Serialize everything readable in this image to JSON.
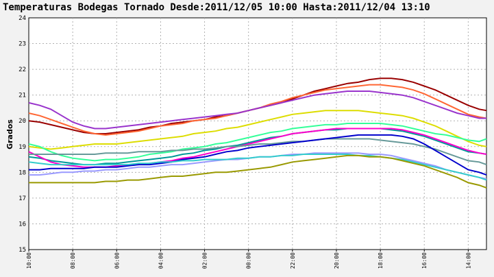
{
  "chart_data": {
    "type": "line",
    "title": "Temperaturas Bodegas Tornado Desde:2011/12/05 10:00 Hasta:2011/12/04 13:10",
    "ylabel": "Grados",
    "xlabel": "",
    "ylim": [
      15,
      24
    ],
    "yticks": [
      15,
      16,
      17,
      18,
      19,
      20,
      21,
      22,
      23,
      24
    ],
    "grid": true,
    "x_ticks": [
      "10:00",
      "08:00",
      "06:00",
      "04:00",
      "02:00",
      "00:00",
      "22:00",
      "20:00",
      "18:00",
      "16:00",
      "14:00"
    ],
    "x_positions": [
      0,
      2,
      4,
      6,
      8,
      10,
      12,
      14,
      16,
      18,
      20
    ],
    "xlim": [
      0,
      20.83
    ],
    "series": [
      {
        "color": "#990000",
        "x": [
          0,
          0.5,
          1,
          1.5,
          2,
          2.5,
          3,
          3.5,
          4,
          4.5,
          5,
          5.5,
          6,
          6.5,
          7,
          7.5,
          8,
          8.5,
          9,
          9.5,
          10,
          10.5,
          11,
          11.5,
          12,
          12.5,
          13,
          13.5,
          14,
          14.5,
          15,
          15.5,
          16,
          16.5,
          17,
          17.5,
          18,
          18.5,
          19,
          19.5,
          20,
          20.5,
          20.83
        ],
        "values": [
          20.0,
          19.95,
          19.85,
          19.75,
          19.65,
          19.55,
          19.5,
          19.5,
          19.55,
          19.6,
          19.65,
          19.75,
          19.8,
          19.9,
          19.95,
          20.0,
          20.05,
          20.15,
          20.2,
          20.3,
          20.4,
          20.5,
          20.6,
          20.7,
          20.85,
          21.0,
          21.15,
          21.25,
          21.35,
          21.45,
          21.5,
          21.6,
          21.65,
          21.65,
          21.6,
          21.5,
          21.35,
          21.2,
          21.0,
          20.8,
          20.6,
          20.45,
          20.4
        ]
      },
      {
        "color": "#ff6633",
        "x": [
          0,
          0.5,
          1,
          1.5,
          2,
          2.5,
          3,
          3.5,
          4,
          4.5,
          5,
          5.5,
          6,
          6.5,
          7,
          7.5,
          8,
          8.5,
          9,
          9.5,
          10,
          10.5,
          11,
          11.5,
          12,
          12.5,
          13,
          13.5,
          14,
          14.5,
          15,
          15.5,
          16,
          16.5,
          17,
          17.5,
          18,
          18.5,
          19,
          19.5,
          20,
          20.5,
          20.83
        ],
        "values": [
          20.3,
          20.2,
          20.05,
          19.9,
          19.75,
          19.6,
          19.5,
          19.45,
          19.5,
          19.55,
          19.6,
          19.7,
          19.8,
          19.85,
          19.9,
          20.0,
          20.05,
          20.1,
          20.2,
          20.3,
          20.4,
          20.5,
          20.65,
          20.75,
          20.9,
          21.0,
          21.1,
          21.2,
          21.25,
          21.3,
          21.35,
          21.4,
          21.4,
          21.35,
          21.3,
          21.2,
          21.05,
          20.85,
          20.65,
          20.45,
          20.25,
          20.15,
          20.1
        ]
      },
      {
        "color": "#9933cc",
        "x": [
          0,
          0.5,
          1,
          1.5,
          2,
          2.5,
          3,
          3.5,
          4,
          4.5,
          5,
          5.5,
          6,
          6.5,
          7,
          7.5,
          8,
          8.5,
          9,
          9.5,
          10,
          10.5,
          11,
          11.5,
          12,
          12.5,
          13,
          13.5,
          14,
          14.5,
          15,
          15.5,
          16,
          16.5,
          17,
          17.5,
          18,
          18.5,
          19,
          19.5,
          20,
          20.5,
          20.83
        ],
        "values": [
          20.7,
          20.6,
          20.45,
          20.2,
          19.95,
          19.8,
          19.7,
          19.7,
          19.75,
          19.8,
          19.85,
          19.9,
          19.95,
          20.0,
          20.05,
          20.1,
          20.15,
          20.2,
          20.25,
          20.3,
          20.4,
          20.5,
          20.6,
          20.7,
          20.8,
          20.9,
          21.0,
          21.05,
          21.1,
          21.15,
          21.15,
          21.15,
          21.1,
          21.05,
          21.0,
          20.9,
          20.75,
          20.6,
          20.45,
          20.3,
          20.2,
          20.1,
          20.1
        ]
      },
      {
        "color": "#dddd00",
        "x": [
          0,
          0.5,
          1,
          1.5,
          2,
          2.5,
          3,
          3.5,
          4,
          4.5,
          5,
          5.5,
          6,
          6.5,
          7,
          7.5,
          8,
          8.5,
          9,
          9.5,
          10,
          10.5,
          11,
          11.5,
          12,
          12.5,
          13,
          13.5,
          14,
          14.5,
          15,
          15.5,
          16,
          16.5,
          17,
          17.5,
          18,
          18.5,
          19,
          19.5,
          20,
          20.5,
          20.83
        ],
        "values": [
          19.0,
          18.95,
          18.9,
          18.95,
          19.0,
          19.05,
          19.1,
          19.1,
          19.1,
          19.15,
          19.2,
          19.25,
          19.3,
          19.35,
          19.4,
          19.5,
          19.55,
          19.6,
          19.7,
          19.75,
          19.85,
          19.95,
          20.05,
          20.15,
          20.25,
          20.3,
          20.35,
          20.4,
          20.4,
          20.4,
          20.4,
          20.35,
          20.3,
          20.25,
          20.2,
          20.1,
          19.95,
          19.8,
          19.6,
          19.4,
          19.2,
          19.05,
          19.0
        ]
      },
      {
        "color": "#33ff99",
        "x": [
          0,
          0.5,
          1,
          1.5,
          2,
          2.5,
          3,
          3.5,
          4,
          4.5,
          5,
          5.5,
          6,
          6.5,
          7,
          7.5,
          8,
          8.5,
          9,
          9.5,
          10,
          10.5,
          11,
          11.5,
          12,
          12.5,
          13,
          13.5,
          14,
          14.5,
          15,
          15.5,
          16,
          16.5,
          17,
          17.5,
          18,
          18.5,
          19,
          19.5,
          20,
          20.5,
          20.83
        ],
        "values": [
          19.1,
          19.0,
          18.8,
          18.65,
          18.55,
          18.5,
          18.45,
          18.5,
          18.5,
          18.55,
          18.6,
          18.7,
          18.75,
          18.8,
          18.9,
          18.95,
          19.0,
          19.1,
          19.15,
          19.25,
          19.35,
          19.45,
          19.55,
          19.6,
          19.7,
          19.75,
          19.8,
          19.85,
          19.85,
          19.9,
          19.9,
          19.9,
          19.9,
          19.85,
          19.8,
          19.7,
          19.6,
          19.5,
          19.45,
          19.35,
          19.25,
          19.2,
          19.3
        ]
      },
      {
        "color": "#009999",
        "x": [
          0,
          0.5,
          1,
          1.5,
          2,
          2.5,
          3,
          3.5,
          4,
          4.5,
          5,
          5.5,
          6,
          6.5,
          7,
          7.5,
          8,
          8.5,
          9,
          9.5,
          10,
          10.5,
          11,
          11.5,
          12,
          12.5,
          13,
          13.5,
          14,
          14.5,
          15,
          15.5,
          16,
          16.5,
          17,
          17.5,
          18,
          18.5,
          19,
          19.5,
          20,
          20.5,
          20.83
        ],
        "values": [
          18.6,
          18.55,
          18.45,
          18.4,
          18.35,
          18.3,
          18.3,
          18.35,
          18.35,
          18.4,
          18.45,
          18.5,
          18.55,
          18.6,
          18.7,
          18.75,
          18.85,
          18.9,
          19.0,
          19.05,
          19.15,
          19.25,
          19.35,
          19.4,
          19.5,
          19.55,
          19.6,
          19.65,
          19.65,
          19.7,
          19.7,
          19.7,
          19.7,
          19.65,
          19.6,
          19.5,
          19.4,
          19.25,
          19.1,
          18.95,
          18.8,
          18.75,
          18.7
        ]
      },
      {
        "color": "#ff00cc",
        "x": [
          0,
          0.5,
          1,
          1.5,
          2,
          2.5,
          3,
          3.5,
          4,
          4.5,
          5,
          5.5,
          6,
          6.5,
          7,
          7.5,
          8,
          8.5,
          9,
          9.5,
          10,
          10.5,
          11,
          11.5,
          12,
          12.5,
          13,
          13.5,
          14,
          14.5,
          15,
          15.5,
          16,
          16.5,
          17,
          17.5,
          18,
          18.5,
          19,
          19.5,
          20,
          20.5,
          20.83
        ],
        "values": [
          18.8,
          18.6,
          18.4,
          18.3,
          18.25,
          18.2,
          18.2,
          18.2,
          18.25,
          18.3,
          18.3,
          18.35,
          18.4,
          18.45,
          18.55,
          18.6,
          18.7,
          18.8,
          18.9,
          19.0,
          19.1,
          19.2,
          19.3,
          19.4,
          19.5,
          19.55,
          19.6,
          19.65,
          19.7,
          19.7,
          19.7,
          19.7,
          19.7,
          19.7,
          19.65,
          19.55,
          19.45,
          19.3,
          19.15,
          19.0,
          18.85,
          18.75,
          18.7
        ]
      },
      {
        "color": "#669999",
        "x": [
          0,
          0.5,
          1,
          1.5,
          2,
          2.5,
          3,
          3.5,
          4,
          4.5,
          5,
          5.5,
          6,
          6.5,
          7,
          7.5,
          8,
          8.5,
          9,
          9.5,
          10,
          10.5,
          11,
          11.5,
          12,
          12.5,
          13,
          13.5,
          14,
          14.5,
          15,
          15.5,
          16,
          16.5,
          17,
          17.5,
          18,
          18.5,
          19,
          19.5,
          20,
          20.5,
          20.83
        ],
        "values": [
          18.7,
          18.7,
          18.7,
          18.7,
          18.7,
          18.7,
          18.7,
          18.75,
          18.75,
          18.75,
          18.8,
          18.8,
          18.8,
          18.85,
          18.85,
          18.9,
          18.9,
          18.95,
          19.0,
          19.0,
          19.05,
          19.1,
          19.1,
          19.15,
          19.2,
          19.2,
          19.25,
          19.3,
          19.3,
          19.3,
          19.3,
          19.3,
          19.25,
          19.2,
          19.15,
          19.1,
          19.0,
          18.9,
          18.75,
          18.6,
          18.45,
          18.4,
          18.3
        ]
      },
      {
        "color": "#0000cc",
        "x": [
          0,
          0.5,
          1,
          1.5,
          2,
          2.5,
          3,
          3.5,
          4,
          4.5,
          5,
          5.5,
          6,
          6.5,
          7,
          7.5,
          8,
          8.5,
          9,
          9.5,
          10,
          10.5,
          11,
          11.5,
          12,
          12.5,
          13,
          13.5,
          14,
          14.5,
          15,
          15.5,
          16,
          16.5,
          17,
          17.5,
          18,
          18.5,
          19,
          19.5,
          20,
          20.5,
          20.83
        ],
        "values": [
          18.1,
          18.1,
          18.15,
          18.15,
          18.15,
          18.15,
          18.2,
          18.2,
          18.2,
          18.25,
          18.3,
          18.3,
          18.35,
          18.4,
          18.5,
          18.55,
          18.6,
          18.7,
          18.8,
          18.85,
          18.95,
          19.0,
          19.05,
          19.1,
          19.15,
          19.2,
          19.25,
          19.3,
          19.35,
          19.4,
          19.45,
          19.45,
          19.45,
          19.45,
          19.4,
          19.3,
          19.1,
          18.85,
          18.6,
          18.35,
          18.1,
          18.0,
          17.9
        ]
      },
      {
        "color": "#9999ff",
        "x": [
          0,
          0.5,
          1,
          1.5,
          2,
          2.5,
          3,
          3.5,
          4,
          4.5,
          5,
          5.5,
          6,
          6.5,
          7,
          7.5,
          8,
          8.5,
          9,
          9.5,
          10,
          10.5,
          11,
          11.5,
          12,
          12.5,
          13,
          13.5,
          14,
          14.5,
          15,
          15.5,
          16,
          16.5,
          17,
          17.5,
          18,
          18.5,
          19,
          19.5,
          20,
          20.5,
          20.83
        ],
        "values": [
          17.9,
          17.9,
          17.95,
          18.0,
          18.0,
          18.05,
          18.05,
          18.1,
          18.1,
          18.15,
          18.2,
          18.2,
          18.25,
          18.3,
          18.3,
          18.35,
          18.4,
          18.45,
          18.5,
          18.5,
          18.55,
          18.6,
          18.6,
          18.65,
          18.7,
          18.7,
          18.75,
          18.75,
          18.75,
          18.75,
          18.75,
          18.7,
          18.7,
          18.65,
          18.55,
          18.45,
          18.35,
          18.25,
          18.1,
          18.0,
          17.9,
          17.8,
          17.75
        ]
      },
      {
        "color": "#33cccc",
        "x": [
          0,
          0.5,
          1,
          1.5,
          2,
          2.5,
          3,
          3.5,
          4,
          4.5,
          5,
          5.5,
          6,
          6.5,
          7,
          7.5,
          8,
          8.5,
          9,
          9.5,
          10,
          10.5,
          11,
          11.5,
          12,
          12.5,
          13,
          13.5,
          14,
          14.5,
          15,
          15.5,
          16,
          16.5,
          17,
          17.5,
          18,
          18.5,
          19,
          19.5,
          20,
          20.5,
          20.83
        ],
        "values": [
          18.4,
          18.35,
          18.3,
          18.3,
          18.3,
          18.3,
          18.3,
          18.3,
          18.3,
          18.3,
          18.35,
          18.35,
          18.4,
          18.4,
          18.45,
          18.45,
          18.5,
          18.5,
          18.5,
          18.55,
          18.55,
          18.6,
          18.6,
          18.65,
          18.65,
          18.7,
          18.7,
          18.7,
          18.7,
          18.7,
          18.65,
          18.65,
          18.6,
          18.55,
          18.5,
          18.4,
          18.3,
          18.2,
          18.1,
          18.0,
          17.9,
          17.8,
          17.7
        ]
      },
      {
        "color": "#999900",
        "x": [
          0,
          0.5,
          1,
          1.5,
          2,
          2.5,
          3,
          3.5,
          4,
          4.5,
          5,
          5.5,
          6,
          6.5,
          7,
          7.5,
          8,
          8.5,
          9,
          9.5,
          10,
          10.5,
          11,
          11.5,
          12,
          12.5,
          13,
          13.5,
          14,
          14.5,
          15,
          15.5,
          16,
          16.5,
          17,
          17.5,
          18,
          18.5,
          19,
          19.5,
          20,
          20.5,
          20.83
        ],
        "values": [
          17.6,
          17.6,
          17.6,
          17.6,
          17.6,
          17.6,
          17.6,
          17.65,
          17.65,
          17.7,
          17.7,
          17.75,
          17.8,
          17.85,
          17.85,
          17.9,
          17.95,
          18.0,
          18.0,
          18.05,
          18.1,
          18.15,
          18.2,
          18.3,
          18.4,
          18.45,
          18.5,
          18.55,
          18.6,
          18.65,
          18.65,
          18.6,
          18.6,
          18.55,
          18.45,
          18.35,
          18.25,
          18.1,
          17.95,
          17.8,
          17.6,
          17.5,
          17.4
        ]
      }
    ]
  }
}
